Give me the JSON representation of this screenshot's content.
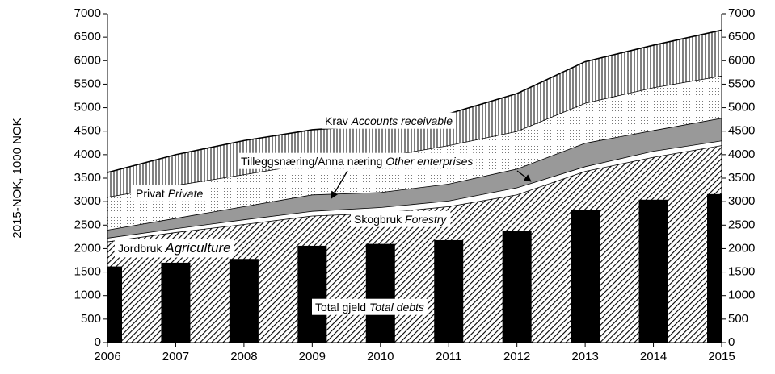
{
  "chart_data": {
    "type": "stacked_area_bar",
    "y_label": "2015-NOK, 1000 NOK",
    "x": [
      2006,
      2007,
      2008,
      2009,
      2010,
      2011,
      2012,
      2013,
      2014,
      2015
    ],
    "xlim": [
      2006,
      2015
    ],
    "xticks": [
      2006,
      2007,
      2008,
      2009,
      2010,
      2011,
      2012,
      2013,
      2014,
      2015
    ],
    "ylim": [
      0,
      7000
    ],
    "yticks": [
      0,
      500,
      1000,
      1500,
      2000,
      2500,
      3000,
      3500,
      4000,
      4500,
      5000,
      5500,
      6000,
      6500,
      7000
    ],
    "y2lim": [
      0,
      7000
    ],
    "y2ticks": [
      0,
      500,
      1000,
      1500,
      2000,
      2500,
      3000,
      3500,
      4000,
      4500,
      5000,
      5500,
      6000,
      6500,
      7000
    ],
    "series": [
      {
        "name": "Jordbruk",
        "name_en": "Agriculture",
        "pattern": "hatch",
        "values": [
          2150,
          2350,
          2520,
          2700,
          2760,
          2900,
          3150,
          3650,
          3950,
          4200
        ]
      },
      {
        "name": "Skogbruk",
        "name_en": "Forestry",
        "pattern": "white",
        "values": [
          80,
          80,
          100,
          100,
          120,
          120,
          150,
          100,
          130,
          100
        ]
      },
      {
        "name": "Tilleggsnæring/Anna næring",
        "name_en": "Other  enterprises",
        "pattern": "gray",
        "values": [
          170,
          220,
          280,
          350,
          320,
          360,
          400,
          500,
          440,
          480
        ]
      },
      {
        "name": "Privat",
        "name_en": "Private",
        "pattern": "dots",
        "values": [
          700,
          700,
          680,
          670,
          750,
          820,
          800,
          850,
          910,
          900
        ]
      },
      {
        "name": "Krav",
        "name_en": "Accounts receivable",
        "pattern": "vlines",
        "values": [
          520,
          650,
          720,
          710,
          680,
          670,
          800,
          880,
          900,
          970
        ]
      }
    ],
    "bars": {
      "name": "Total gjeld",
      "name_en": "Total debts",
      "color": "#000000",
      "values": [
        1620,
        1700,
        1780,
        2060,
        2100,
        2180,
        2380,
        2820,
        3040,
        3160
      ]
    }
  }
}
